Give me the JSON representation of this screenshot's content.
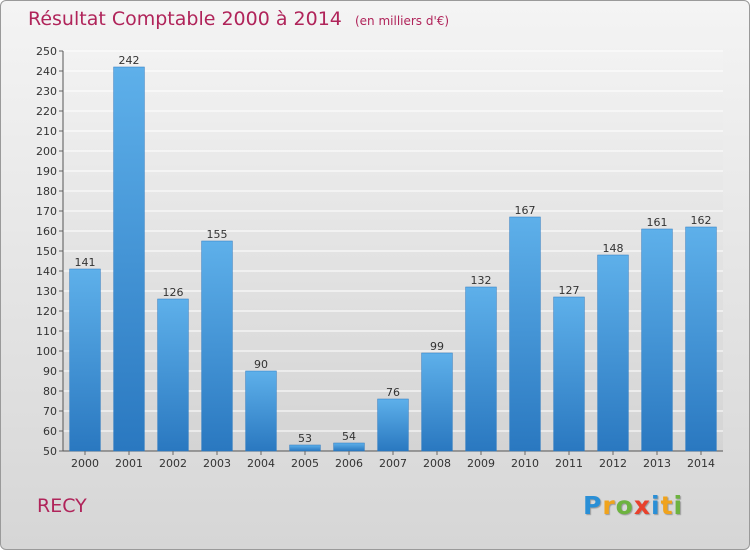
{
  "chart_data": {
    "type": "bar",
    "title": "Résultat Comptable 2000 à 2014",
    "subtitle": "(en milliers d'€)",
    "categories": [
      "2000",
      "2001",
      "2002",
      "2003",
      "2004",
      "2005",
      "2006",
      "2007",
      "2008",
      "2009",
      "2010",
      "2011",
      "2012",
      "2013",
      "2014"
    ],
    "values": [
      141,
      242,
      126,
      155,
      90,
      53,
      54,
      76,
      99,
      132,
      167,
      127,
      148,
      161,
      162
    ],
    "ylim": [
      50,
      250
    ],
    "ytick_step": 10,
    "grid": true,
    "bar_color": "#3f97dc"
  },
  "footer": {
    "commune": "RECY",
    "logo_letters": [
      {
        "ch": "P",
        "color": "#2a8fd6"
      },
      {
        "ch": "r",
        "color": "#f0a31c"
      },
      {
        "ch": "o",
        "color": "#6db33f"
      },
      {
        "ch": "x",
        "color": "#e8412c"
      },
      {
        "ch": "i",
        "color": "#2a8fd6"
      },
      {
        "ch": "t",
        "color": "#f0a31c"
      },
      {
        "ch": "i",
        "color": "#6db33f"
      }
    ]
  }
}
